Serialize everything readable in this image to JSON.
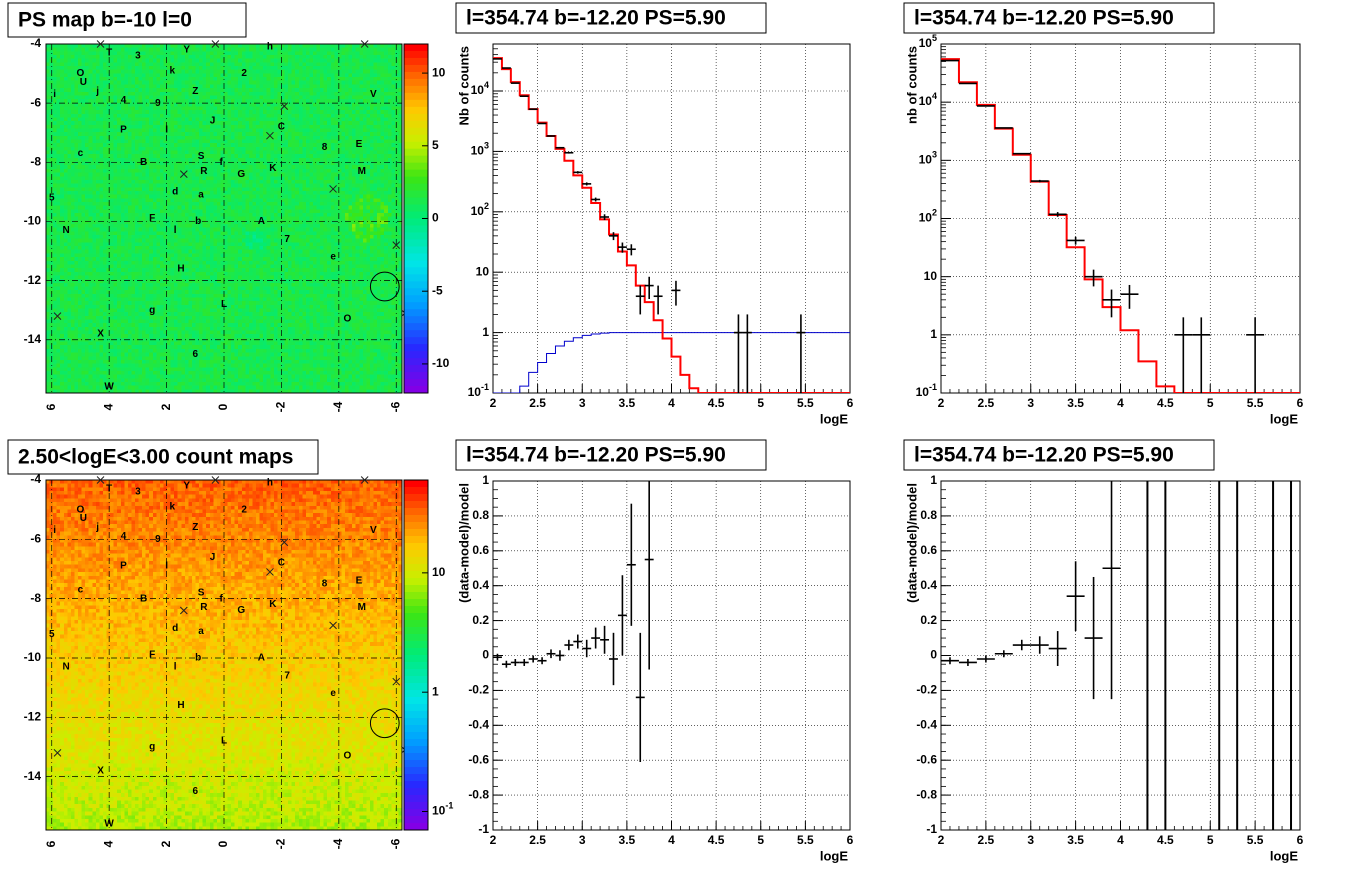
{
  "panels": [
    {
      "id": "pmap",
      "title": "PS map b=-10 l=0",
      "chart_data": {
        "type": "heatmap",
        "title": "PS map b=-10 l=0",
        "x_ticks": [
          "6",
          "4",
          "2",
          "0",
          "-2",
          "-4",
          "-6"
        ],
        "x_range": [
          6.2,
          -6.2
        ],
        "y_ticks": [
          "-4",
          "-6",
          "-8",
          "-10",
          "-12",
          "-14"
        ],
        "y_range": [
          -15.8,
          -4.0
        ],
        "z_ticks": [
          "10",
          "5",
          "0",
          "-5",
          "-10"
        ],
        "z_range": [
          -12,
          12
        ],
        "palette": "rainbow",
        "dominant_value": 0,
        "grid": true
      }
    },
    {
      "id": "hist1",
      "title": "l=354.74 b=-12.20 PS=5.90",
      "chart_data": {
        "type": "line",
        "xlabel": "logE",
        "ylabel": "Nb of counts",
        "x_range": [
          2,
          6
        ],
        "y_range": [
          0.1,
          60000
        ],
        "yscale": "log",
        "x_ticks": [
          "2",
          "2.5",
          "3",
          "3.5",
          "4",
          "4.5",
          "5",
          "5.5",
          "6"
        ],
        "y_ticks": [
          "10^{-1}",
          "1",
          "10",
          "10^{2}",
          "10^{3}",
          "10^{4}"
        ],
        "grid": true,
        "model_color": "#ff0000",
        "model_step": {
          "edges": [
            2.0,
            2.1,
            2.2,
            2.3,
            2.4,
            2.5,
            2.6,
            2.7,
            2.8,
            2.9,
            3.0,
            3.1,
            3.2,
            3.3,
            3.4,
            3.5,
            3.6,
            3.7,
            3.8,
            3.9,
            4.0,
            4.1,
            4.2,
            4.3,
            4.4,
            6.0
          ],
          "values": [
            35000,
            23000,
            14000,
            8500,
            5000,
            3000,
            1800,
            1100,
            700,
            400,
            250,
            140,
            75,
            42,
            22,
            13,
            6,
            3.2,
            1.6,
            0.8,
            0.4,
            0.2,
            0.12,
            0.1,
            0.1
          ]
        },
        "efficiency_color": "#0000cc",
        "efficiency_step": {
          "edges": [
            2.0,
            2.1,
            2.2,
            2.3,
            2.4,
            2.5,
            2.6,
            2.7,
            2.8,
            2.9,
            3.0,
            3.1,
            3.2,
            3.3,
            3.4,
            6.0
          ],
          "values": [
            0.1,
            0.1,
            0.1,
            0.13,
            0.22,
            0.32,
            0.45,
            0.6,
            0.72,
            0.82,
            0.9,
            0.95,
            0.98,
            1.0,
            1.0
          ]
        },
        "data_points": [
          {
            "x": 2.05,
            "y": 34000,
            "yerr": 200,
            "xerr": 0.05
          },
          {
            "x": 2.15,
            "y": 24000,
            "yerr": 160,
            "xerr": 0.05
          },
          {
            "x": 2.25,
            "y": 13500,
            "yerr": 120,
            "xerr": 0.05
          },
          {
            "x": 2.35,
            "y": 8200,
            "yerr": 90,
            "xerr": 0.05
          },
          {
            "x": 2.45,
            "y": 5000,
            "yerr": 70,
            "xerr": 0.05
          },
          {
            "x": 2.55,
            "y": 2900,
            "yerr": 55,
            "xerr": 0.05
          },
          {
            "x": 2.65,
            "y": 1800,
            "yerr": 42,
            "xerr": 0.05
          },
          {
            "x": 2.75,
            "y": 1150,
            "yerr": 34,
            "xerr": 0.05
          },
          {
            "x": 2.85,
            "y": 950,
            "yerr": 30,
            "xerr": 0.05
          },
          {
            "x": 2.95,
            "y": 450,
            "yerr": 21,
            "xerr": 0.05
          },
          {
            "x": 3.05,
            "y": 290,
            "yerr": 17,
            "xerr": 0.05
          },
          {
            "x": 3.15,
            "y": 160,
            "yerr": 12,
            "xerr": 0.05
          },
          {
            "x": 3.25,
            "y": 82,
            "yerr": 9,
            "xerr": 0.05
          },
          {
            "x": 3.35,
            "y": 40,
            "yerr": 6,
            "xerr": 0.05
          },
          {
            "x": 3.45,
            "y": 26,
            "yerr": 5,
            "xerr": 0.05
          },
          {
            "x": 3.55,
            "y": 24,
            "yerr": 5,
            "xerr": 0.05
          },
          {
            "x": 3.65,
            "y": 4,
            "yerr": 2,
            "xerr": 0.05
          },
          {
            "x": 3.75,
            "y": 6,
            "yerr": 2.4,
            "xerr": 0.05
          },
          {
            "x": 3.85,
            "y": 4,
            "yerr": 2,
            "xerr": 0.05
          },
          {
            "x": 4.05,
            "y": 5,
            "yerr": 2.2,
            "xerr": 0.05
          },
          {
            "x": 4.75,
            "y": 1,
            "yerr": 1,
            "xerr": 0.05
          },
          {
            "x": 4.85,
            "y": 1,
            "yerr": 1,
            "xerr": 0.05
          },
          {
            "x": 5.45,
            "y": 1,
            "yerr": 1,
            "xerr": 0.05
          }
        ]
      }
    },
    {
      "id": "hist2",
      "title": "l=354.74 b=-12.20 PS=5.90",
      "chart_data": {
        "type": "line",
        "xlabel": "logE",
        "ylabel": "nb of counts",
        "x_range": [
          2,
          6
        ],
        "y_range": [
          0.1,
          100000
        ],
        "yscale": "log",
        "x_ticks": [
          "2",
          "2.5",
          "3",
          "3.5",
          "4",
          "4.5",
          "5",
          "5.5",
          "6"
        ],
        "y_ticks": [
          "10^{-1}",
          "1",
          "10",
          "10^{2}",
          "10^{3}",
          "10^{4}",
          "10^{5}"
        ],
        "grid": true,
        "model_color": "#ff0000",
        "model_step": {
          "edges": [
            2.0,
            2.2,
            2.4,
            2.6,
            2.8,
            3.0,
            3.2,
            3.4,
            3.6,
            3.8,
            4.0,
            4.2,
            4.4,
            4.6,
            6.0
          ],
          "values": [
            55000,
            22000,
            9000,
            3500,
            1250,
            430,
            115,
            32,
            9,
            3,
            1.2,
            0.35,
            0.13,
            0.1
          ]
        },
        "data_points": [
          {
            "x": 2.1,
            "y": 52000,
            "yerr": 230,
            "xerr": 0.1
          },
          {
            "x": 2.3,
            "y": 21000,
            "yerr": 145,
            "xerr": 0.1
          },
          {
            "x": 2.5,
            "y": 8600,
            "yerr": 93,
            "xerr": 0.1
          },
          {
            "x": 2.7,
            "y": 3600,
            "yerr": 60,
            "xerr": 0.1
          },
          {
            "x": 2.9,
            "y": 1300,
            "yerr": 36,
            "xerr": 0.1
          },
          {
            "x": 3.1,
            "y": 440,
            "yerr": 21,
            "xerr": 0.1
          },
          {
            "x": 3.3,
            "y": 118,
            "yerr": 11,
            "xerr": 0.1
          },
          {
            "x": 3.5,
            "y": 42,
            "yerr": 6.5,
            "xerr": 0.1
          },
          {
            "x": 3.7,
            "y": 10,
            "yerr": 3.2,
            "xerr": 0.1
          },
          {
            "x": 3.9,
            "y": 4,
            "yerr": 2,
            "xerr": 0.1
          },
          {
            "x": 4.1,
            "y": 5,
            "yerr": 2.2,
            "xerr": 0.1
          },
          {
            "x": 4.7,
            "y": 1,
            "yerr": 1,
            "xerr": 0.1
          },
          {
            "x": 4.9,
            "y": 1,
            "yerr": 1,
            "xerr": 0.1
          },
          {
            "x": 5.5,
            "y": 1,
            "yerr": 1,
            "xerr": 0.1
          }
        ]
      }
    },
    {
      "id": "cmap",
      "title": "2.50<logE<3.00 count maps",
      "chart_data": {
        "type": "heatmap",
        "title": "2.50<logE<3.00 count maps",
        "x_ticks": [
          "6",
          "4",
          "2",
          "0",
          "-2",
          "-4",
          "-6"
        ],
        "x_range": [
          6.2,
          -6.2
        ],
        "y_ticks": [
          "-4",
          "-6",
          "-8",
          "-10",
          "-12",
          "-14"
        ],
        "y_range": [
          -15.8,
          -4.0
        ],
        "z_ticks": [
          "10",
          "1",
          "10^{-1}"
        ],
        "zscale": "log",
        "z_range": [
          0.07,
          60
        ],
        "palette": "rainbow",
        "gradient": "counts decrease with decreasing b",
        "grid": true
      }
    },
    {
      "id": "res1",
      "title": "l=354.74 b=-12.20 PS=5.90",
      "chart_data": {
        "type": "scatter",
        "xlabel": "logE",
        "ylabel": "(data-model)/model",
        "x_range": [
          2,
          6
        ],
        "y_range": [
          -1,
          1
        ],
        "x_ticks": [
          "2",
          "2.5",
          "3",
          "3.5",
          "4",
          "4.5",
          "5",
          "5.5",
          "6"
        ],
        "y_ticks": [
          "-1",
          "-0.8",
          "-0.6",
          "-0.4",
          "-0.2",
          "0",
          "0.2",
          "0.4",
          "0.6",
          "0.8",
          "1"
        ],
        "grid": true,
        "data_points": [
          {
            "x": 2.05,
            "y": -0.01,
            "yerr": 0.02,
            "xerr": 0.05
          },
          {
            "x": 2.15,
            "y": -0.05,
            "yerr": 0.02,
            "xerr": 0.05
          },
          {
            "x": 2.25,
            "y": -0.04,
            "yerr": 0.02,
            "xerr": 0.05
          },
          {
            "x": 2.35,
            "y": -0.04,
            "yerr": 0.02,
            "xerr": 0.05
          },
          {
            "x": 2.45,
            "y": -0.02,
            "yerr": 0.02,
            "xerr": 0.05
          },
          {
            "x": 2.55,
            "y": -0.03,
            "yerr": 0.02,
            "xerr": 0.05
          },
          {
            "x": 2.65,
            "y": 0.01,
            "yerr": 0.025,
            "xerr": 0.05
          },
          {
            "x": 2.75,
            "y": 0.0,
            "yerr": 0.03,
            "xerr": 0.05
          },
          {
            "x": 2.85,
            "y": 0.06,
            "yerr": 0.03,
            "xerr": 0.05
          },
          {
            "x": 2.95,
            "y": 0.08,
            "yerr": 0.04,
            "xerr": 0.05
          },
          {
            "x": 3.05,
            "y": 0.04,
            "yerr": 0.05,
            "xerr": 0.05
          },
          {
            "x": 3.15,
            "y": 0.1,
            "yerr": 0.06,
            "xerr": 0.05
          },
          {
            "x": 3.25,
            "y": 0.09,
            "yerr": 0.08,
            "xerr": 0.05
          },
          {
            "x": 3.35,
            "y": -0.02,
            "yerr": 0.15,
            "xerr": 0.05
          },
          {
            "x": 3.45,
            "y": 0.23,
            "yerr": 0.23,
            "xerr": 0.05
          },
          {
            "x": 3.55,
            "y": 0.52,
            "yerr": 0.35,
            "xerr": 0.05
          },
          {
            "x": 3.65,
            "y": -0.24,
            "yerr": 0.37,
            "xerr": 0.05
          },
          {
            "x": 3.75,
            "y": 0.55,
            "yerr": 0.63,
            "xerr": 0.05
          }
        ]
      }
    },
    {
      "id": "res2",
      "title": "l=354.74 b=-12.20 PS=5.90",
      "chart_data": {
        "type": "scatter",
        "xlabel": "logE",
        "ylabel": "(data-model)/model",
        "x_range": [
          2,
          6
        ],
        "y_range": [
          -1,
          1
        ],
        "x_ticks": [
          "2",
          "2.5",
          "3",
          "3.5",
          "4",
          "4.5",
          "5",
          "5.5",
          "6"
        ],
        "y_ticks": [
          "-1",
          "-0.8",
          "-0.6",
          "-0.4",
          "-0.2",
          "0",
          "0.2",
          "0.4",
          "0.6",
          "0.8",
          "1"
        ],
        "grid": true,
        "data_points": [
          {
            "x": 2.1,
            "y": -0.03,
            "yerr": 0.02,
            "xerr": 0.1
          },
          {
            "x": 2.3,
            "y": -0.04,
            "yerr": 0.02,
            "xerr": 0.1
          },
          {
            "x": 2.5,
            "y": -0.02,
            "yerr": 0.02,
            "xerr": 0.1
          },
          {
            "x": 2.7,
            "y": 0.01,
            "yerr": 0.02,
            "xerr": 0.1
          },
          {
            "x": 2.9,
            "y": 0.06,
            "yerr": 0.03,
            "xerr": 0.1
          },
          {
            "x": 3.1,
            "y": 0.06,
            "yerr": 0.05,
            "xerr": 0.1
          },
          {
            "x": 3.3,
            "y": 0.04,
            "yerr": 0.1,
            "xerr": 0.1
          },
          {
            "x": 3.5,
            "y": 0.34,
            "yerr": 0.2,
            "xerr": 0.1
          },
          {
            "x": 3.7,
            "y": 0.1,
            "yerr": 0.35,
            "xerr": 0.1
          },
          {
            "x": 3.9,
            "y": 0.5,
            "yerr": 0.75,
            "xerr": 0.1
          }
        ],
        "full_range_error_bars_x": [
          4.3,
          4.5,
          5.1,
          5.3,
          5.7,
          5.9
        ]
      }
    }
  ],
  "overlay": {
    "labels": [
      {
        "t": "T",
        "x": 4.0,
        "y": -4.3
      },
      {
        "t": "3",
        "x": 3.0,
        "y": -4.4
      },
      {
        "t": "Y",
        "x": 1.3,
        "y": -4.2
      },
      {
        "t": "h",
        "x": -1.6,
        "y": -4.1
      },
      {
        "t": "O",
        "x": 5.0,
        "y": -5.0
      },
      {
        "t": "U",
        "x": 4.9,
        "y": -5.3
      },
      {
        "t": "k",
        "x": 1.8,
        "y": -4.9
      },
      {
        "t": "2",
        "x": -0.7,
        "y": -5.0
      },
      {
        "t": "i",
        "x": 5.9,
        "y": -5.7
      },
      {
        "t": "j",
        "x": 4.4,
        "y": -5.6
      },
      {
        "t": "Z",
        "x": 1.0,
        "y": -5.6
      },
      {
        "t": "V",
        "x": -5.2,
        "y": -5.7
      },
      {
        "t": "4",
        "x": 3.5,
        "y": -5.9
      },
      {
        "t": "9",
        "x": 2.3,
        "y": -6.0
      },
      {
        "t": "P",
        "x": 3.5,
        "y": -6.9
      },
      {
        "t": "I",
        "x": 2.0,
        "y": -6.9
      },
      {
        "t": "J",
        "x": 0.4,
        "y": -6.6
      },
      {
        "t": "C",
        "x": -2.0,
        "y": -6.8
      },
      {
        "t": "E",
        "x": -4.7,
        "y": -7.4
      },
      {
        "t": "c",
        "x": 5.0,
        "y": -7.7
      },
      {
        "t": "8",
        "x": -3.5,
        "y": -7.5
      },
      {
        "t": "B",
        "x": 2.8,
        "y": -8.0
      },
      {
        "t": "S",
        "x": 0.8,
        "y": -7.8
      },
      {
        "t": "f",
        "x": 0.1,
        "y": -8.0
      },
      {
        "t": "K",
        "x": -1.7,
        "y": -8.2
      },
      {
        "t": "G",
        "x": -0.6,
        "y": -8.4
      },
      {
        "t": "M",
        "x": -4.8,
        "y": -8.3
      },
      {
        "t": "R",
        "x": 0.7,
        "y": -8.3
      },
      {
        "t": "d",
        "x": 1.7,
        "y": -9.0
      },
      {
        "t": "a",
        "x": 0.8,
        "y": -9.1
      },
      {
        "t": "5",
        "x": 6.0,
        "y": -9.2
      },
      {
        "t": "F",
        "x": 2.5,
        "y": -9.9
      },
      {
        "t": "b",
        "x": 0.9,
        "y": -10.0
      },
      {
        "t": "A",
        "x": -1.3,
        "y": -10.0
      },
      {
        "t": "N",
        "x": 5.5,
        "y": -10.3
      },
      {
        "t": "l",
        "x": 1.7,
        "y": -10.3
      },
      {
        "t": "7",
        "x": -2.2,
        "y": -10.6
      },
      {
        "t": "e",
        "x": -3.8,
        "y": -11.2
      },
      {
        "t": "H",
        "x": 1.5,
        "y": -11.6
      },
      {
        "t": "L",
        "x": 0.0,
        "y": -12.8
      },
      {
        "t": "g",
        "x": 2.5,
        "y": -13.0
      },
      {
        "t": "O",
        "x": -4.3,
        "y": -13.3
      },
      {
        "t": "X",
        "x": 4.3,
        "y": -13.8
      },
      {
        "t": "6",
        "x": 1.0,
        "y": -14.5
      },
      {
        "t": "W",
        "x": 4.0,
        "y": -15.6
      }
    ],
    "crosses": [
      {
        "x": 4.3,
        "y": -4.0
      },
      {
        "x": 0.3,
        "y": -4.0
      },
      {
        "x": -4.9,
        "y": -4.0
      },
      {
        "x": -2.1,
        "y": -6.1
      },
      {
        "x": -1.6,
        "y": -7.1
      },
      {
        "x": 1.4,
        "y": -8.4
      },
      {
        "x": -3.8,
        "y": -8.9
      },
      {
        "x": -6.0,
        "y": -10.8
      },
      {
        "x": 5.8,
        "y": -13.2
      },
      {
        "x": -6.3,
        "y": -13.1
      }
    ],
    "circle": {
      "x": -5.6,
      "y": -12.2,
      "r": 0.5
    }
  }
}
